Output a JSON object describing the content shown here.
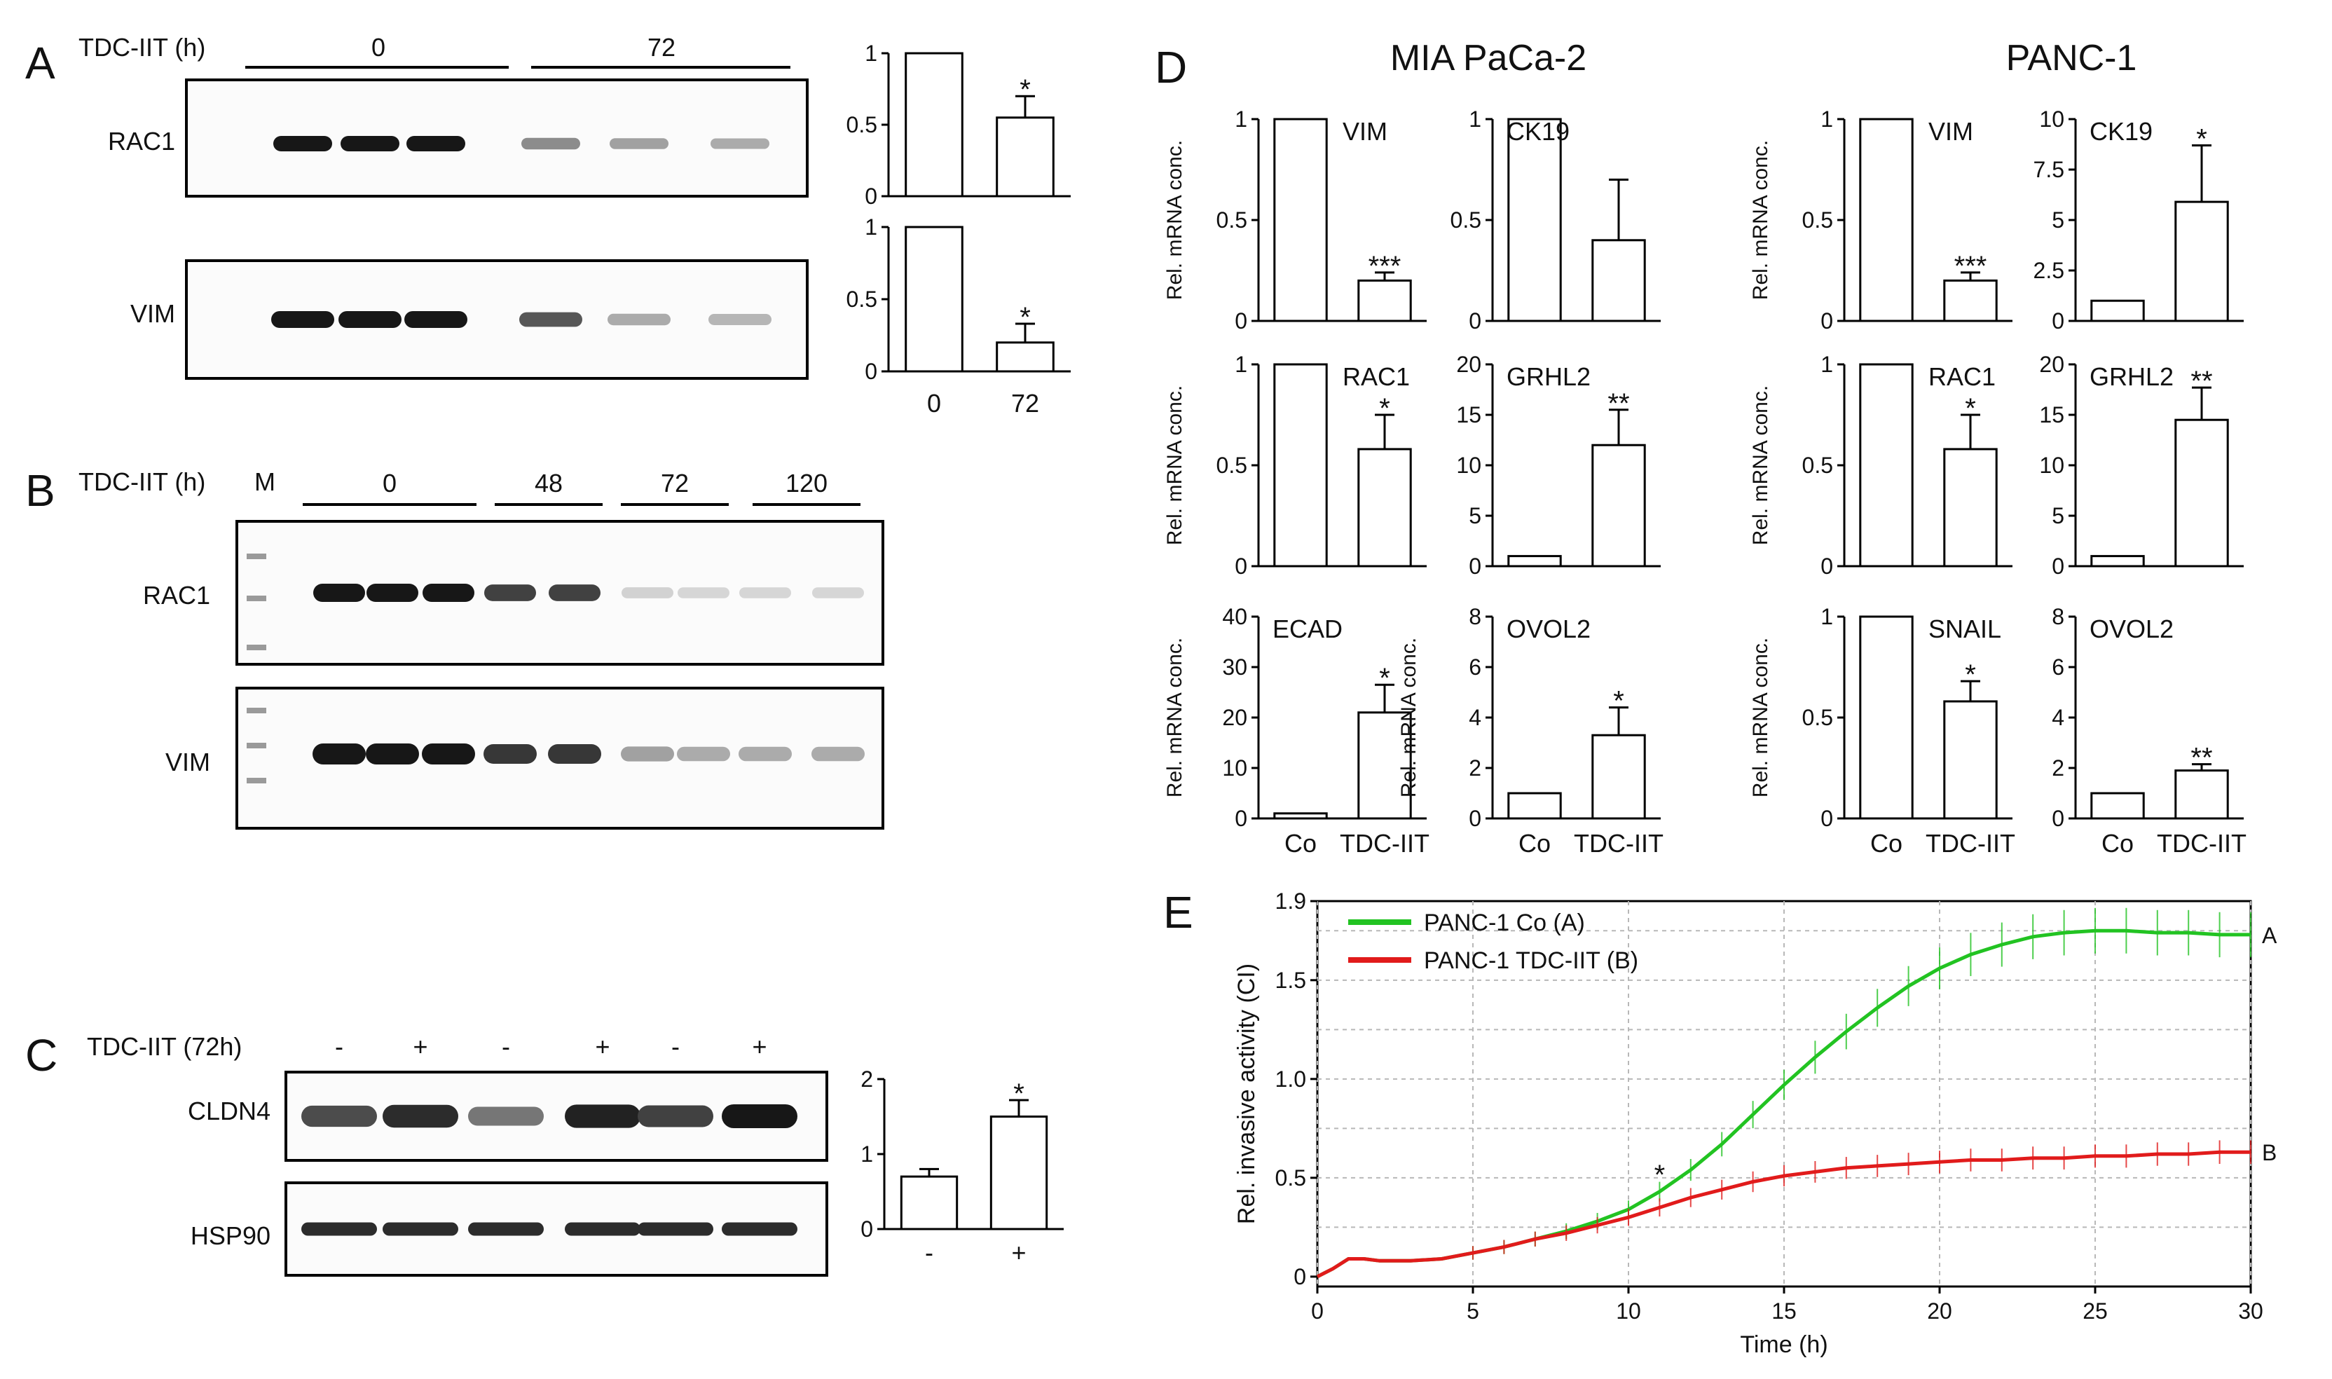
{
  "panels": {
    "A": {
      "letter": "A",
      "treatment_label": "TDC-IIT  (h)",
      "group_labels": [
        "0",
        "72"
      ],
      "rows": [
        {
          "label": "RAC1",
          "lane_intensity": [
            1,
            1,
            1,
            0.45,
            0.35,
            0.3
          ]
        },
        {
          "label": "VIM",
          "lane_intensity": [
            1,
            1,
            1,
            0.7,
            0.3,
            0.25
          ]
        }
      ],
      "bar_charts": [
        {
          "name": "RAC1",
          "categories": [
            "0",
            "72"
          ],
          "values": [
            1,
            0.55
          ],
          "errors": [
            0,
            0.15
          ],
          "ymax": 1,
          "ticks": [
            "0",
            "0.5",
            "1"
          ],
          "sig": [
            "",
            "*"
          ]
        },
        {
          "name": "VIM",
          "categories": [
            "0",
            "72"
          ],
          "values": [
            1,
            0.2
          ],
          "errors": [
            0,
            0.13
          ],
          "ymax": 1,
          "ticks": [
            "0",
            "0.5",
            "1"
          ],
          "sig": [
            "",
            "*"
          ]
        }
      ],
      "x_labels": [
        "0",
        "72"
      ]
    },
    "B": {
      "letter": "B",
      "treatment_label": "TDC-IIT  (h)",
      "marker_label": "M",
      "group_labels": [
        "0",
        "48",
        "72",
        "120"
      ],
      "rows": [
        {
          "label": "RAC1",
          "lane_intensity": [
            1,
            1,
            1,
            0.8,
            0.8,
            0.12,
            0.1,
            0.1,
            0.1
          ]
        },
        {
          "label": "VIM",
          "lane_intensity": [
            1,
            1,
            1,
            0.85,
            0.85,
            0.35,
            0.3,
            0.3,
            0.3
          ]
        }
      ]
    },
    "C": {
      "letter": "C",
      "treatment_label": "TDC-IIT  (72h)",
      "lane_signs": [
        "-",
        "+",
        "-",
        "+",
        "-",
        "+"
      ],
      "rows": [
        {
          "label": "CLDN4",
          "lane_intensity": [
            0.75,
            0.9,
            0.55,
            0.95,
            0.8,
            1
          ]
        },
        {
          "label": "HSP90",
          "lane_intensity": [
            0.9,
            0.9,
            0.9,
            0.9,
            0.9,
            0.9
          ]
        }
      ],
      "bar_chart": {
        "categories": [
          "-",
          "+"
        ],
        "values": [
          0.7,
          1.5
        ],
        "errors": [
          0.1,
          0.22
        ],
        "ymax": 2,
        "ticks": [
          "0",
          "1",
          "2"
        ],
        "sig": [
          "",
          "*"
        ]
      }
    },
    "D": {
      "letter": "D",
      "cell_lines": [
        "MIA PaCa-2",
        "PANC-1"
      ],
      "y_label": "Rel. mRNA conc.",
      "x_categories": [
        "Co",
        "TDC-IIT"
      ]
    },
    "E": {
      "letter": "E",
      "y_label": "Rel. invasive activity (CI)",
      "x_label": "Time (h)",
      "line_tags": [
        "A",
        "B"
      ],
      "sig_mark": "*"
    }
  },
  "chart_data": [
    {
      "type": "bar",
      "title": "MIA PaCa-2 VIM",
      "label": "VIM",
      "categories": [
        "Co",
        "TDC-IIT"
      ],
      "values": [
        1,
        0.2
      ],
      "errors": [
        0,
        0.04
      ],
      "ylim": [
        0,
        1
      ],
      "ticks": [
        "0",
        "0.5",
        "1"
      ],
      "sig": [
        "",
        "***"
      ],
      "ylabel": "Rel. mRNA conc."
    },
    {
      "type": "bar",
      "title": "MIA PaCa-2 CK19",
      "label": "CK19",
      "categories": [
        "Co",
        "TDC-IIT"
      ],
      "values": [
        1,
        0.4
      ],
      "errors": [
        0,
        0.3
      ],
      "ylim": [
        0,
        1
      ],
      "ticks": [
        "0",
        "0.5",
        "1"
      ],
      "sig": [
        "",
        ""
      ],
      "ylabel": ""
    },
    {
      "type": "bar",
      "title": "MIA PaCa-2 RAC1",
      "label": "RAC1",
      "categories": [
        "Co",
        "TDC-IIT"
      ],
      "values": [
        1,
        0.58
      ],
      "errors": [
        0,
        0.17
      ],
      "ylim": [
        0,
        1
      ],
      "ticks": [
        "0",
        "0.5",
        "1"
      ],
      "sig": [
        "",
        "*"
      ],
      "ylabel": "Rel. mRNA conc."
    },
    {
      "type": "bar",
      "title": "MIA PaCa-2 GRHL2",
      "label": "GRHL2",
      "categories": [
        "Co",
        "TDC-IIT"
      ],
      "values": [
        1,
        12
      ],
      "errors": [
        0,
        3.5
      ],
      "ylim": [
        0,
        20
      ],
      "ticks": [
        "0",
        "5",
        "10",
        "15",
        "20"
      ],
      "sig": [
        "",
        "**"
      ],
      "ylabel": ""
    },
    {
      "type": "bar",
      "title": "MIA PaCa-2 ECAD",
      "label": "ECAD",
      "categories": [
        "Co",
        "TDC-IIT"
      ],
      "values": [
        1,
        21
      ],
      "errors": [
        0,
        5.5
      ],
      "ylim": [
        0,
        40
      ],
      "ticks": [
        "0",
        "10",
        "20",
        "30",
        "40"
      ],
      "sig": [
        "",
        "*"
      ],
      "ylabel": "Rel. mRNA conc."
    },
    {
      "type": "bar",
      "title": "MIA PaCa-2 OVOL2",
      "label": "OVOL2",
      "categories": [
        "Co",
        "TDC-IIT"
      ],
      "values": [
        1,
        3.3
      ],
      "errors": [
        0,
        1.1
      ],
      "ylim": [
        0,
        8
      ],
      "ticks": [
        "0",
        "2",
        "4",
        "6",
        "8"
      ],
      "sig": [
        "",
        "*"
      ],
      "ylabel": "Rel. mRNA conc."
    },
    {
      "type": "bar",
      "title": "PANC-1 VIM",
      "label": "VIM",
      "categories": [
        "Co",
        "TDC-IIT"
      ],
      "values": [
        1,
        0.2
      ],
      "errors": [
        0,
        0.04
      ],
      "ylim": [
        0,
        1
      ],
      "ticks": [
        "0",
        "0.5",
        "1"
      ],
      "sig": [
        "",
        "***"
      ],
      "ylabel": "Rel. mRNA conc."
    },
    {
      "type": "bar",
      "title": "PANC-1 CK19",
      "label": "CK19",
      "categories": [
        "Co",
        "TDC-IIT"
      ],
      "values": [
        1,
        5.9
      ],
      "errors": [
        0,
        2.8
      ],
      "ylim": [
        0,
        10
      ],
      "ticks": [
        "0",
        "2.5",
        "5",
        "7.5",
        "10"
      ],
      "sig": [
        "",
        "*"
      ],
      "ylabel": ""
    },
    {
      "type": "bar",
      "title": "PANC-1 RAC1",
      "label": "RAC1",
      "categories": [
        "Co",
        "TDC-IIT"
      ],
      "values": [
        1,
        0.58
      ],
      "errors": [
        0,
        0.17
      ],
      "ylim": [
        0,
        1
      ],
      "ticks": [
        "0",
        "0.5",
        "1"
      ],
      "sig": [
        "",
        "*"
      ],
      "ylabel": "Rel. mRNA conc."
    },
    {
      "type": "bar",
      "title": "PANC-1 GRHL2",
      "label": "GRHL2",
      "categories": [
        "Co",
        "TDC-IIT"
      ],
      "values": [
        1,
        14.5
      ],
      "errors": [
        0,
        3.2
      ],
      "ylim": [
        0,
        20
      ],
      "ticks": [
        "0",
        "5",
        "10",
        "15",
        "20"
      ],
      "sig": [
        "",
        "**"
      ],
      "ylabel": ""
    },
    {
      "type": "bar",
      "title": "PANC-1 SNAIL",
      "label": "SNAIL",
      "categories": [
        "Co",
        "TDC-IIT"
      ],
      "values": [
        1,
        0.58
      ],
      "errors": [
        0,
        0.1
      ],
      "ylim": [
        0,
        1
      ],
      "ticks": [
        "0",
        "0.5",
        "1"
      ],
      "sig": [
        "",
        "*"
      ],
      "ylabel": "Rel. mRNA conc."
    },
    {
      "type": "bar",
      "title": "PANC-1 OVOL2",
      "label": "OVOL2",
      "categories": [
        "Co",
        "TDC-IIT"
      ],
      "values": [
        1,
        1.9
      ],
      "errors": [
        0,
        0.25
      ],
      "ylim": [
        0,
        8
      ],
      "ticks": [
        "0",
        "2",
        "4",
        "6",
        "8"
      ],
      "sig": [
        "",
        "**"
      ],
      "ylabel": ""
    },
    {
      "type": "line",
      "title": "PANC-1 invasion",
      "xlabel": "Time (h)",
      "ylabel": "Rel. invasive activity (CI)",
      "xlim": [
        0,
        30
      ],
      "ylim": [
        -0.05,
        1.9
      ],
      "xticks": [
        "0",
        "5",
        "10",
        "15",
        "20",
        "25",
        "30"
      ],
      "yticks": [
        "0",
        "0.5",
        "1.0",
        "1.5",
        "1.9"
      ],
      "x": [
        0,
        0.5,
        1,
        1.5,
        2,
        3,
        4,
        5,
        6,
        7,
        8,
        9,
        10,
        11,
        12,
        13,
        14,
        15,
        16,
        17,
        18,
        19,
        20,
        21,
        22,
        23,
        24,
        25,
        26,
        27,
        28,
        29,
        30
      ],
      "series": [
        {
          "name": "PANC-1 Co (A)",
          "color": "#22c322",
          "values": [
            0,
            0.04,
            0.09,
            0.09,
            0.08,
            0.08,
            0.09,
            0.12,
            0.15,
            0.19,
            0.23,
            0.28,
            0.34,
            0.43,
            0.54,
            0.67,
            0.82,
            0.97,
            1.11,
            1.24,
            1.36,
            1.47,
            1.56,
            1.63,
            1.68,
            1.72,
            1.74,
            1.75,
            1.75,
            1.74,
            1.74,
            1.73,
            1.73
          ]
        },
        {
          "name": "PANC-1 TDC-IIT  (B)",
          "color": "#e11b1b",
          "values": [
            0,
            0.04,
            0.09,
            0.09,
            0.08,
            0.08,
            0.09,
            0.12,
            0.15,
            0.19,
            0.22,
            0.26,
            0.3,
            0.35,
            0.4,
            0.44,
            0.48,
            0.51,
            0.53,
            0.55,
            0.56,
            0.57,
            0.58,
            0.59,
            0.59,
            0.6,
            0.6,
            0.61,
            0.61,
            0.62,
            0.62,
            0.63,
            0.63
          ]
        }
      ]
    }
  ]
}
